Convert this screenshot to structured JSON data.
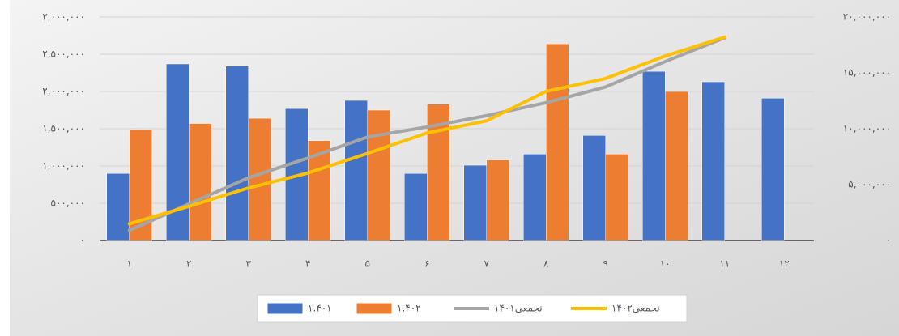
{
  "chart_data": {
    "type": "bar",
    "categories": [
      "۱",
      "۲",
      "۳",
      "۴",
      "۵",
      "۶",
      "۷",
      "۸",
      "۹",
      "۱۰",
      "۱۱",
      "۱۲"
    ],
    "series": [
      {
        "name": "۱.۴۰۱",
        "type": "bar",
        "color": "#4472c4",
        "values": [
          900000,
          2370000,
          2340000,
          1770000,
          1880000,
          900000,
          1010000,
          1160000,
          1410000,
          2270000,
          2130000,
          1910000
        ]
      },
      {
        "name": "۱.۴۰۲",
        "type": "bar",
        "color": "#ed7d31",
        "values": [
          1490000,
          1570000,
          1640000,
          1340000,
          1750000,
          1830000,
          1080000,
          2640000,
          1160000,
          2000000,
          null,
          null
        ]
      },
      {
        "name": "تجمعی۱۴۰۱",
        "type": "line",
        "axis": "y2",
        "color": "#a5a5a5",
        "values": [
          900000,
          3270000,
          5610000,
          7380000,
          9260000,
          10160000,
          11170000,
          12330000,
          13740000,
          16010000,
          18140000,
          null
        ]
      },
      {
        "name": "تجمعی۱۴۰۲",
        "type": "line",
        "axis": "y2",
        "color": "#ffc000",
        "values": [
          1490000,
          3060000,
          4700000,
          6040000,
          7790000,
          9620000,
          10700000,
          13340000,
          14500000,
          16500000,
          18200000,
          null
        ]
      }
    ],
    "ylim": [
      0,
      3000000
    ],
    "yticks": [
      {
        "value": 0,
        "label": "۰"
      },
      {
        "value": 500000,
        "label": "۵۰۰,۰۰۰"
      },
      {
        "value": 1000000,
        "label": "۱,۰۰۰,۰۰۰"
      },
      {
        "value": 1500000,
        "label": "۱,۵۰۰,۰۰۰"
      },
      {
        "value": 2000000,
        "label": "۲,۰۰۰,۰۰۰"
      },
      {
        "value": 2500000,
        "label": "۲,۵۰۰,۰۰۰"
      },
      {
        "value": 3000000,
        "label": "۳,۰۰۰,۰۰۰"
      }
    ],
    "y2lim": [
      0,
      20000000
    ],
    "y2ticks": [
      {
        "value": 0,
        "label": "۰"
      },
      {
        "value": 5000000,
        "label": "۵,۰۰۰,۰۰۰"
      },
      {
        "value": 10000000,
        "label": "۱۰,۰۰۰,۰۰۰"
      },
      {
        "value": 15000000,
        "label": "۱۵,۰۰۰,۰۰۰"
      },
      {
        "value": 20000000,
        "label": "۲۰,۰۰۰,۰۰۰"
      }
    ],
    "grid": true,
    "legend": "bottom"
  }
}
